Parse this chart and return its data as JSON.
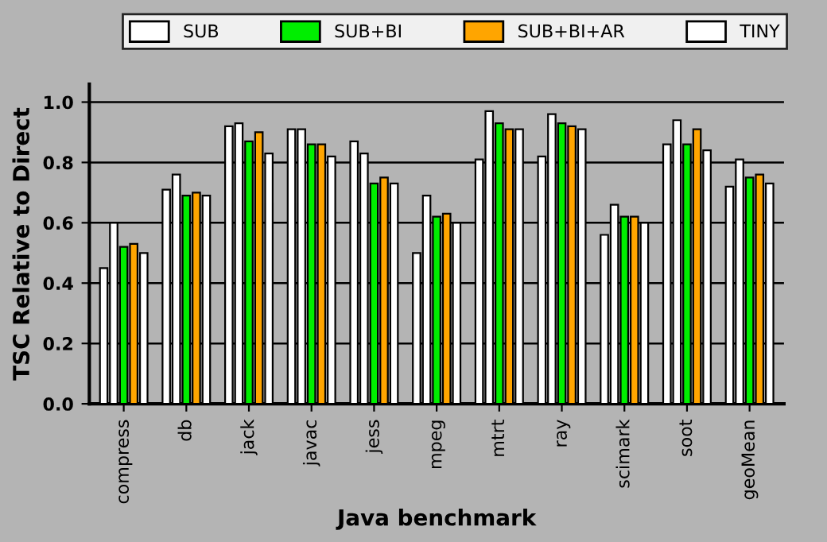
{
  "chart_data": {
    "type": "bar",
    "xlabel": "Java benchmark",
    "ylabel": "TSC Relative to Direct",
    "categories": [
      "compress",
      "db",
      "jack",
      "javac",
      "jess",
      "mpeg",
      "mtrt",
      "ray",
      "scimark",
      "soot",
      "geoMean"
    ],
    "series": [
      {
        "color": "#ffffff",
        "values": [
          0.45,
          0.71,
          0.92,
          0.91,
          0.87,
          0.5,
          0.81,
          0.82,
          0.56,
          0.86,
          0.72
        ]
      },
      {
        "name": "SUB",
        "color": "#ffffff",
        "values": [
          0.6,
          0.76,
          0.93,
          0.91,
          0.83,
          0.69,
          0.97,
          0.96,
          0.66,
          0.94,
          0.81
        ]
      },
      {
        "name": "SUB+BI",
        "color": "#00ee00",
        "values": [
          0.52,
          0.69,
          0.87,
          0.86,
          0.73,
          0.62,
          0.93,
          0.93,
          0.62,
          0.86,
          0.75
        ]
      },
      {
        "name": "SUB+BI+AR",
        "color": "#ffa500",
        "values": [
          0.53,
          0.7,
          0.9,
          0.86,
          0.75,
          0.63,
          0.91,
          0.92,
          0.62,
          0.91,
          0.76
        ]
      },
      {
        "name": "TINY",
        "color": "#ffffff",
        "values": [
          0.5,
          0.69,
          0.83,
          0.82,
          0.73,
          0.6,
          0.91,
          0.91,
          0.6,
          0.84,
          0.73
        ]
      }
    ],
    "ylim": [
      0,
      1.06
    ],
    "yticks": [
      {
        "value": 0,
        "label": "0.0"
      },
      {
        "value": 0.2,
        "label": "0.2"
      },
      {
        "value": 0.4,
        "label": "0.4"
      },
      {
        "value": 0.6,
        "label": "0.6"
      },
      {
        "value": 0.8,
        "label": "0.8"
      },
      {
        "value": 1.0,
        "label": "1.0"
      }
    ],
    "grid": "y",
    "legend": "top"
  }
}
